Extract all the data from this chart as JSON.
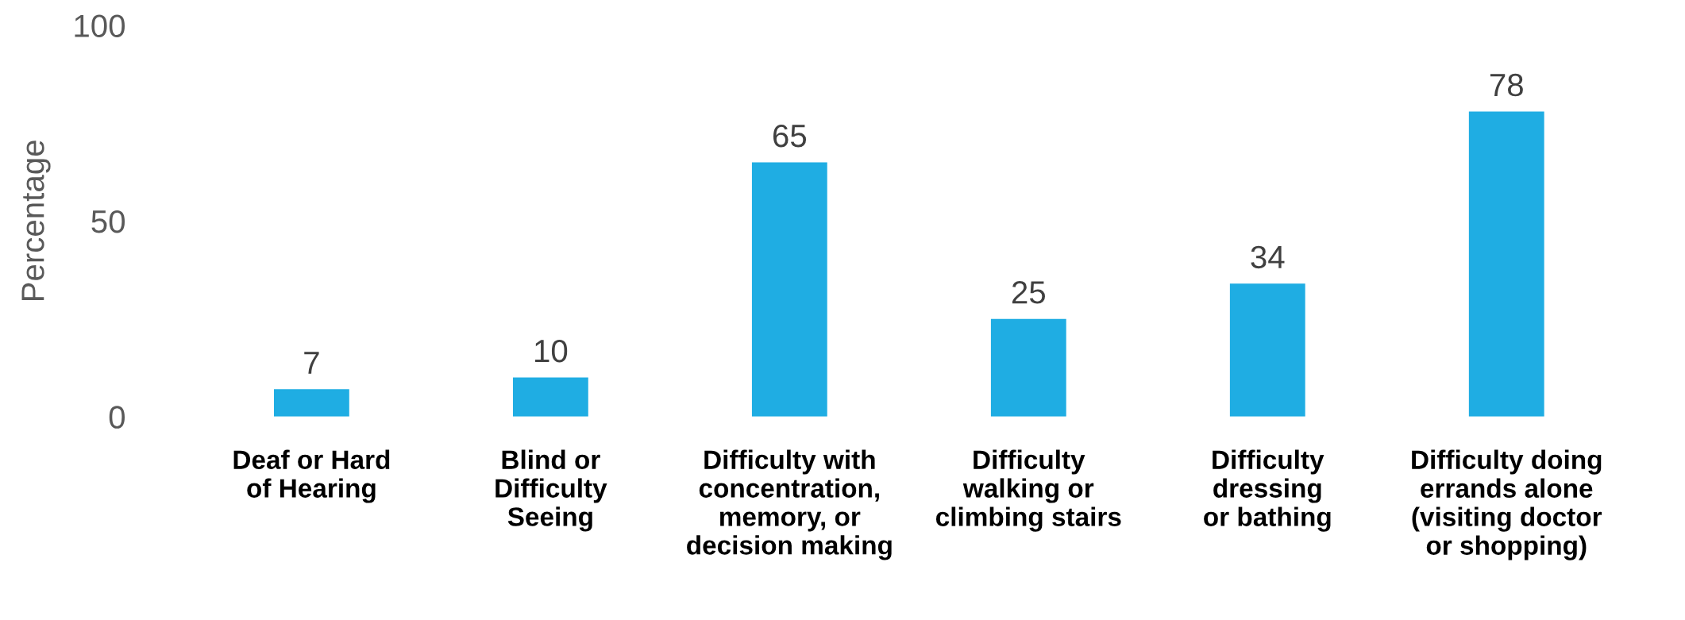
{
  "chart_data": {
    "type": "bar",
    "ylabel": "Percentage",
    "categories": [
      "Deaf or Hard\nof Hearing",
      "Blind or\nDifficulty\nSeeing",
      "Difficulty with\nconcentration,\nmemory, or\ndecision making",
      "Difficulty\nwalking or\nclimbing stairs",
      "Difficulty\ndressing\nor bathing",
      "Difficulty doing\nerrands alone\n(visiting doctor\nor shopping)"
    ],
    "values": [
      7,
      10,
      65,
      25,
      34,
      78
    ],
    "color": "#1fade3",
    "ylim": [
      0,
      100
    ],
    "yticks": [
      0,
      50,
      100
    ],
    "data_labels": true,
    "grid": false,
    "legend": false
  }
}
